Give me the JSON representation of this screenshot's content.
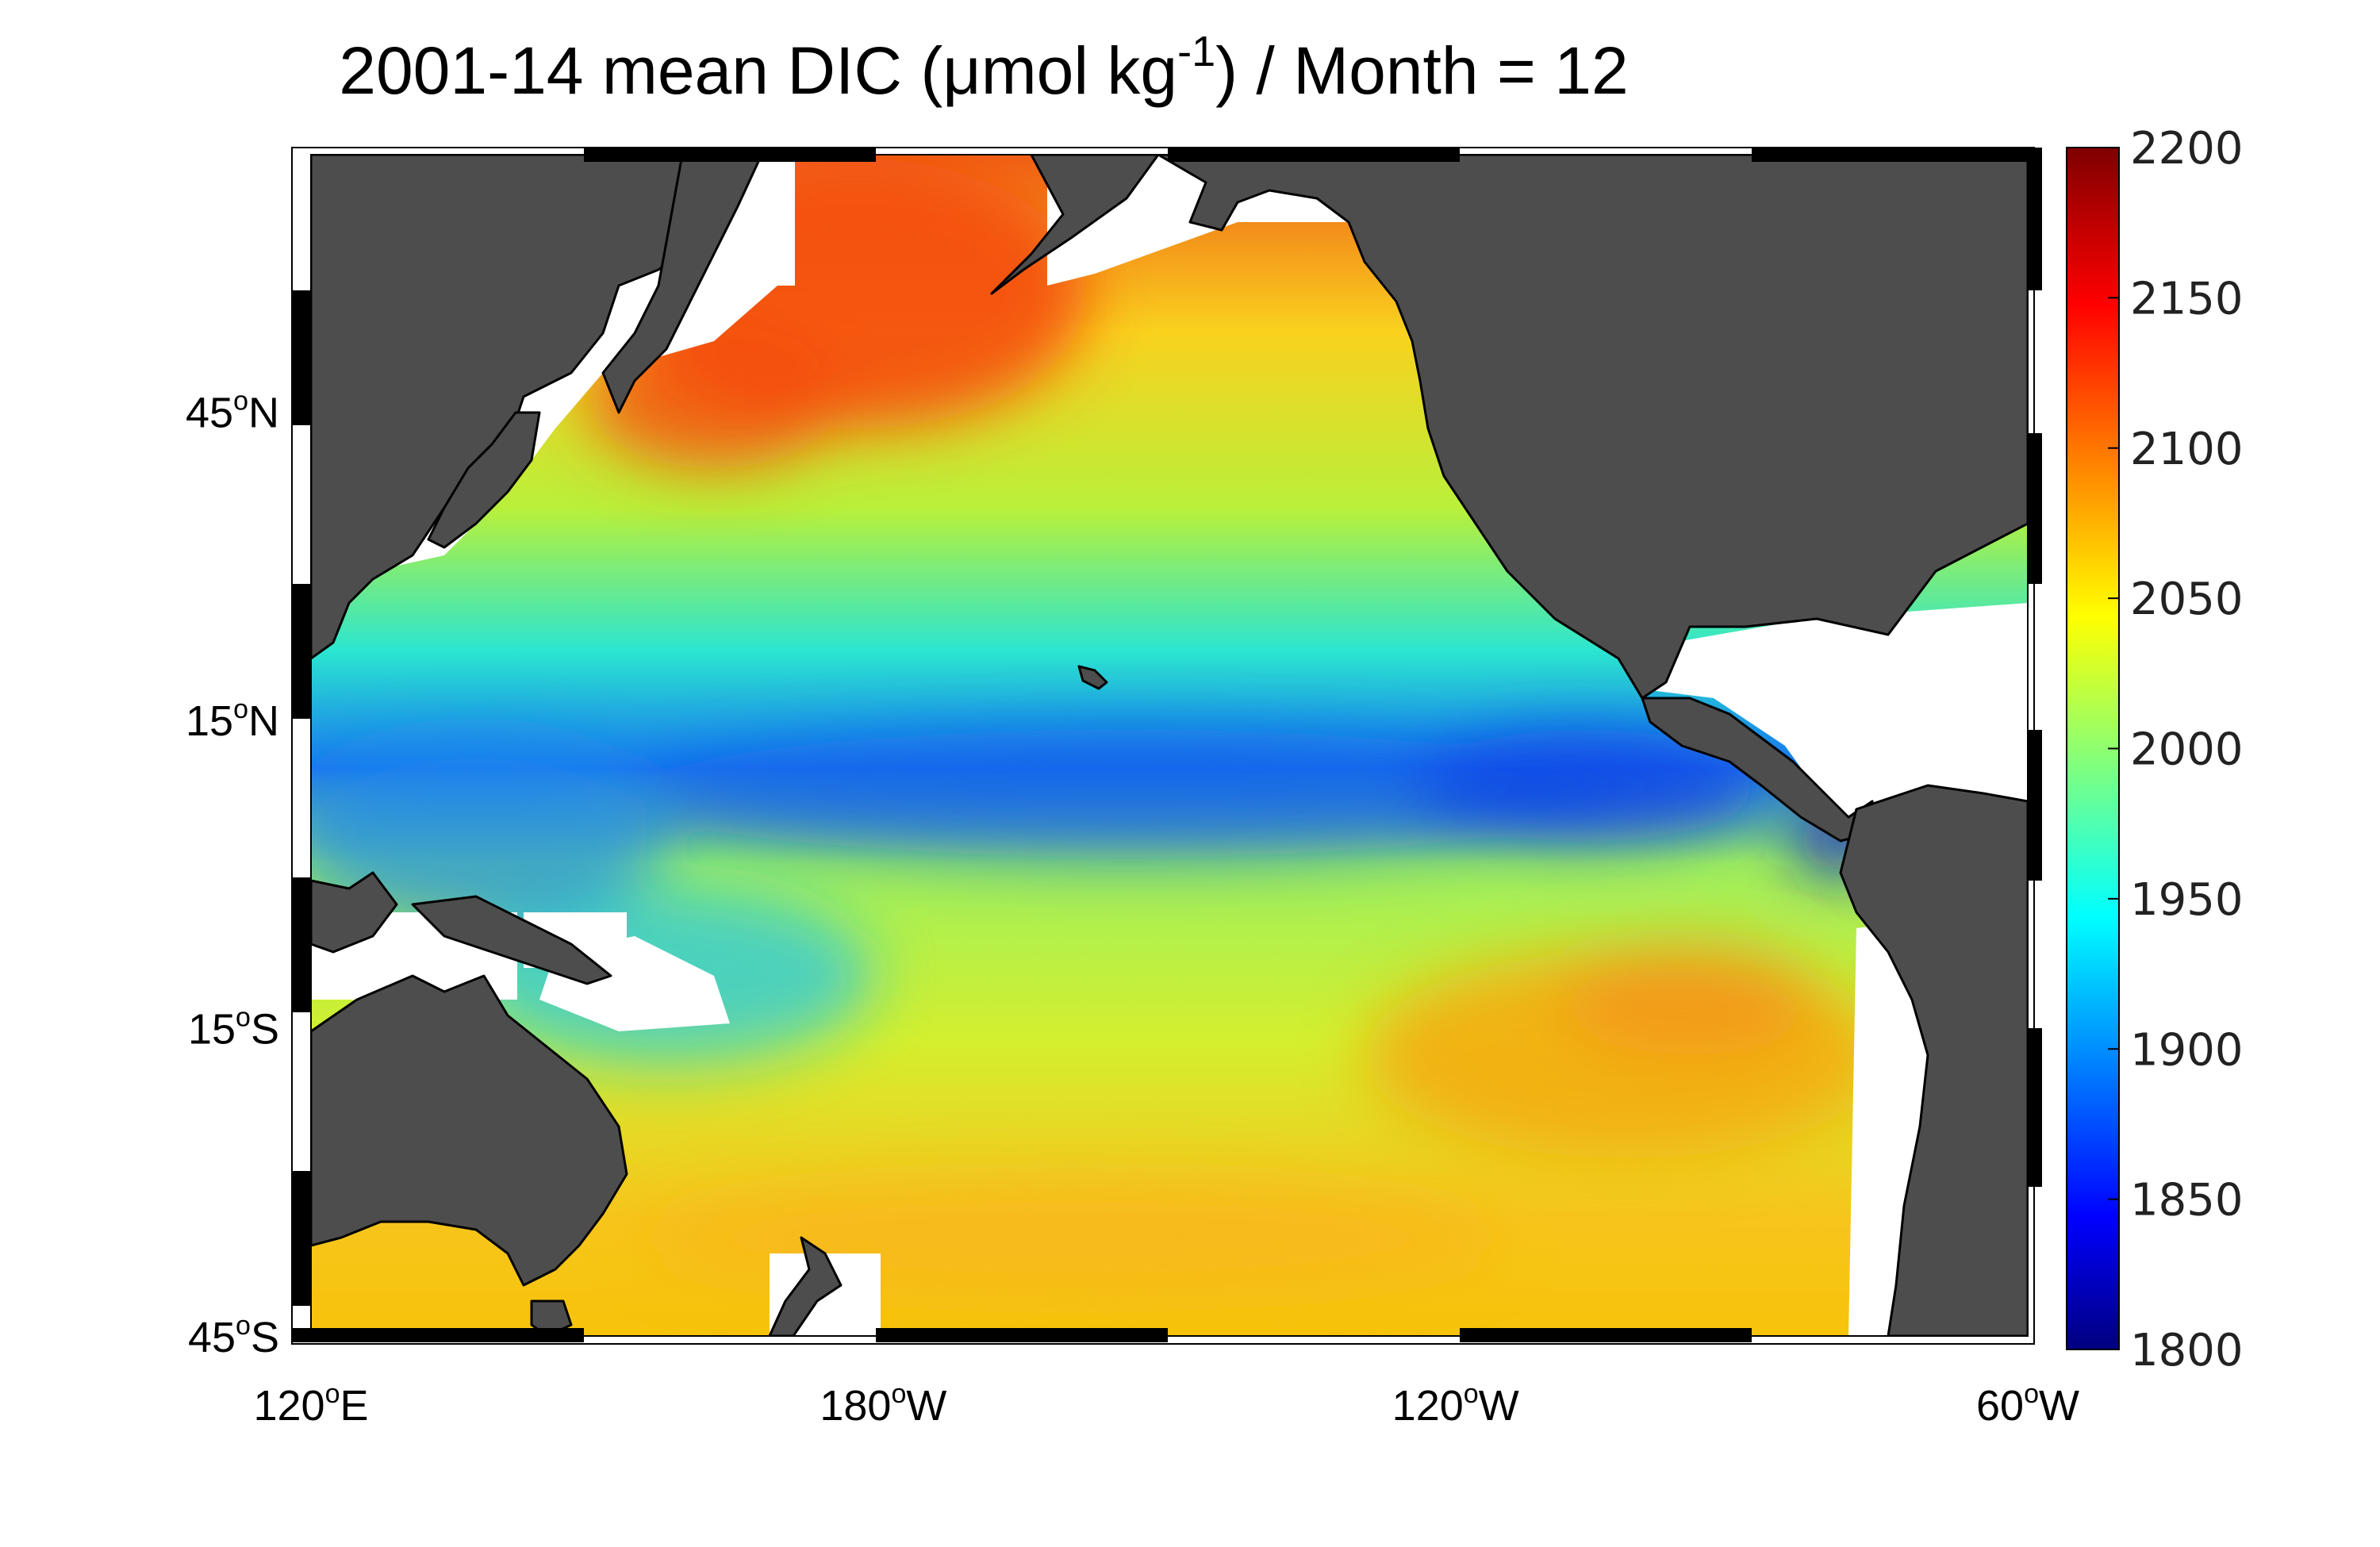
{
  "title": {
    "prefix": "2001-14 mean DIC (μmol kg",
    "exponent": "-1",
    "suffix": ") / Month = 12"
  },
  "map": {
    "type": "map",
    "projection": "equirectangular",
    "lon_range": [
      120,
      300
    ],
    "lat_range": [
      -45,
      70
    ],
    "lat_ticks": [
      {
        "value": 45,
        "deg": "45",
        "hem": "N"
      },
      {
        "value": 15,
        "deg": "15",
        "hem": "N"
      },
      {
        "value": -15,
        "deg": "15",
        "hem": "S"
      },
      {
        "value": -45,
        "deg": "45",
        "hem": "S"
      }
    ],
    "lon_ticks": [
      {
        "value": 120,
        "deg": "120",
        "hem": "E"
      },
      {
        "value": 180,
        "deg": "180",
        "hem": "W"
      },
      {
        "value": 240,
        "deg": "120",
        "hem": "W"
      },
      {
        "value": 300,
        "deg": "60",
        "hem": "W"
      }
    ],
    "land_color": "#4d4d4d",
    "no_data_color": "#ffffff",
    "colormap": "jet",
    "colorbar": {
      "min": 1800,
      "max": 2200,
      "ticks": [
        "2200",
        "2150",
        "2100",
        "2050",
        "2000",
        "1950",
        "1900",
        "1850",
        "1800"
      ]
    }
  }
}
